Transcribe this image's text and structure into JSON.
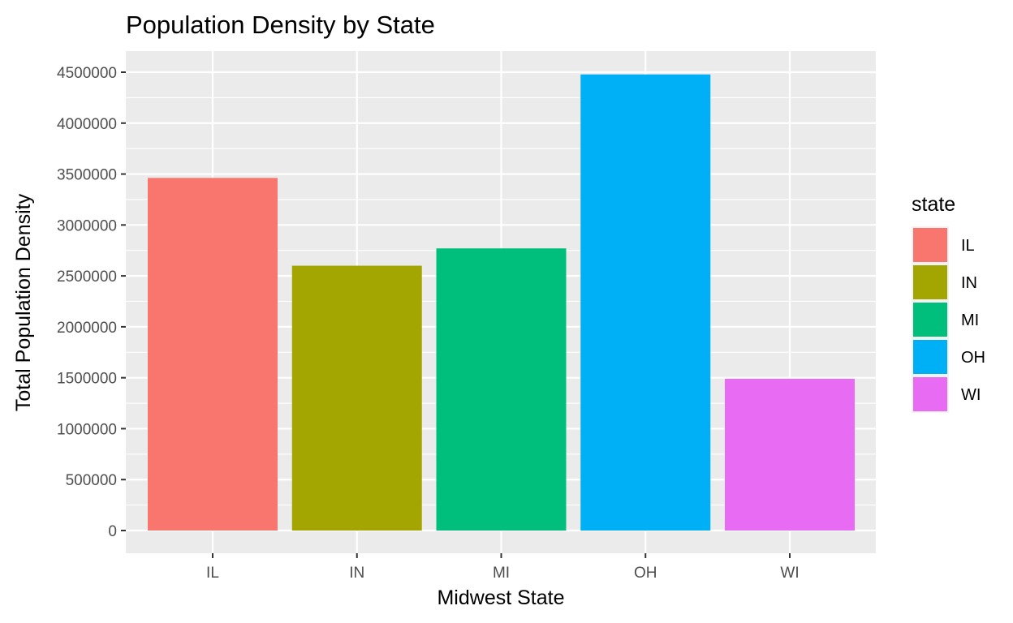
{
  "chart_data": {
    "type": "bar",
    "title": "Population Density by State",
    "xlabel": "Midwest State",
    "ylabel": "Total Population Density",
    "categories": [
      "IL",
      "IN",
      "MI",
      "OH",
      "WI"
    ],
    "values": [
      3462000,
      2600000,
      2770000,
      4478000,
      1490000
    ],
    "colors": [
      "#F8766D",
      "#A3A500",
      "#00BF7D",
      "#00B0F6",
      "#E76BF3"
    ],
    "ylim": [
      0,
      4500000
    ],
    "y_ticks": [
      "0",
      "500000",
      "1000000",
      "1500000",
      "2000000",
      "2500000",
      "3000000",
      "3500000",
      "4000000",
      "4500000"
    ],
    "grid": true,
    "legend": {
      "title": "state",
      "placement": "right",
      "entries": [
        "IL",
        "IN",
        "MI",
        "OH",
        "WI"
      ]
    },
    "panel_background": "#EBEBEB",
    "grid_color": "#FFFFFF"
  }
}
